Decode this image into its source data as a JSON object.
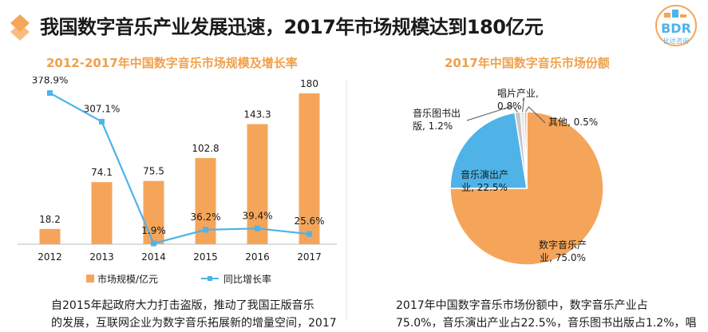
{
  "header": {
    "title": "我国数字音乐产业发展迅速，2017年市场规模达到180亿元",
    "brand": "BDR",
    "brand_sub": "比达咨询"
  },
  "colors": {
    "orange": "#f5a55a",
    "blue": "#4fb3e8",
    "title_orange": "#f0a04b",
    "pie_grey": "#c7c7c7",
    "pie_light": "#e6e6e6"
  },
  "left_chart": {
    "title": "2012-2017年中国数字音乐市场规模及增长率",
    "legend_bar": "市场规模/亿元",
    "legend_line": "同比增长率",
    "caption_line1": "自2015年起政府大力打击盗版，推动了我国正版音乐",
    "caption_line2": "的发展，互联网企业为数字音乐拓展新的增量空间，2017"
  },
  "right_chart": {
    "title": "2017年中国数字音乐市场份额",
    "caption_line1": "2017年中国数字音乐市场份额中，数字音乐产业占",
    "caption_line2": "75.0%，音乐演出产业占22.5%，音乐图书出版占1.2%，唱"
  },
  "chart_data": [
    {
      "type": "bar",
      "title": "2012-2017年中国数字音乐市场规模及增长率",
      "categories": [
        "2012",
        "2013",
        "2014",
        "2015",
        "2016",
        "2017"
      ],
      "series": [
        {
          "name": "市场规模/亿元",
          "type": "bar",
          "values": [
            18.2,
            74.1,
            75.5,
            102.8,
            143.3,
            180
          ],
          "labels": [
            "18.2",
            "74.1",
            "75.5",
            "102.8",
            "143.3",
            "180"
          ]
        },
        {
          "name": "同比增长率",
          "type": "line",
          "values": [
            378.9,
            307.1,
            1.9,
            36.2,
            39.4,
            25.6
          ],
          "labels": [
            "378.9%",
            "307.1%",
            "1.9%",
            "36.2%",
            "39.4%",
            "25.6%"
          ]
        }
      ],
      "ylim": [
        0,
        200
      ],
      "y2lim": [
        0,
        420
      ],
      "xlabel": "",
      "ylabel": "",
      "legend": "bottom"
    },
    {
      "type": "pie",
      "title": "2017年中国数字音乐市场份额",
      "slices": [
        {
          "label": "数字音乐产业",
          "value": 75.0,
          "text": "数字音乐产\n业, 75.0%",
          "color": "#f5a55a"
        },
        {
          "label": "音乐演出产业",
          "value": 22.5,
          "text": "音乐演出产\n业, 22.5%",
          "color": "#4fb3e8"
        },
        {
          "label": "音乐图书出版",
          "value": 1.2,
          "text": "音乐图书出\n版, 1.2%",
          "color": "#c7c7c7"
        },
        {
          "label": "唱片产业",
          "value": 0.8,
          "text": "唱片产业,\n0.8%",
          "color": "#e6e6e6"
        },
        {
          "label": "其他",
          "value": 0.5,
          "text": "其他, 0.5%",
          "color": "#f5a55a"
        }
      ]
    }
  ]
}
